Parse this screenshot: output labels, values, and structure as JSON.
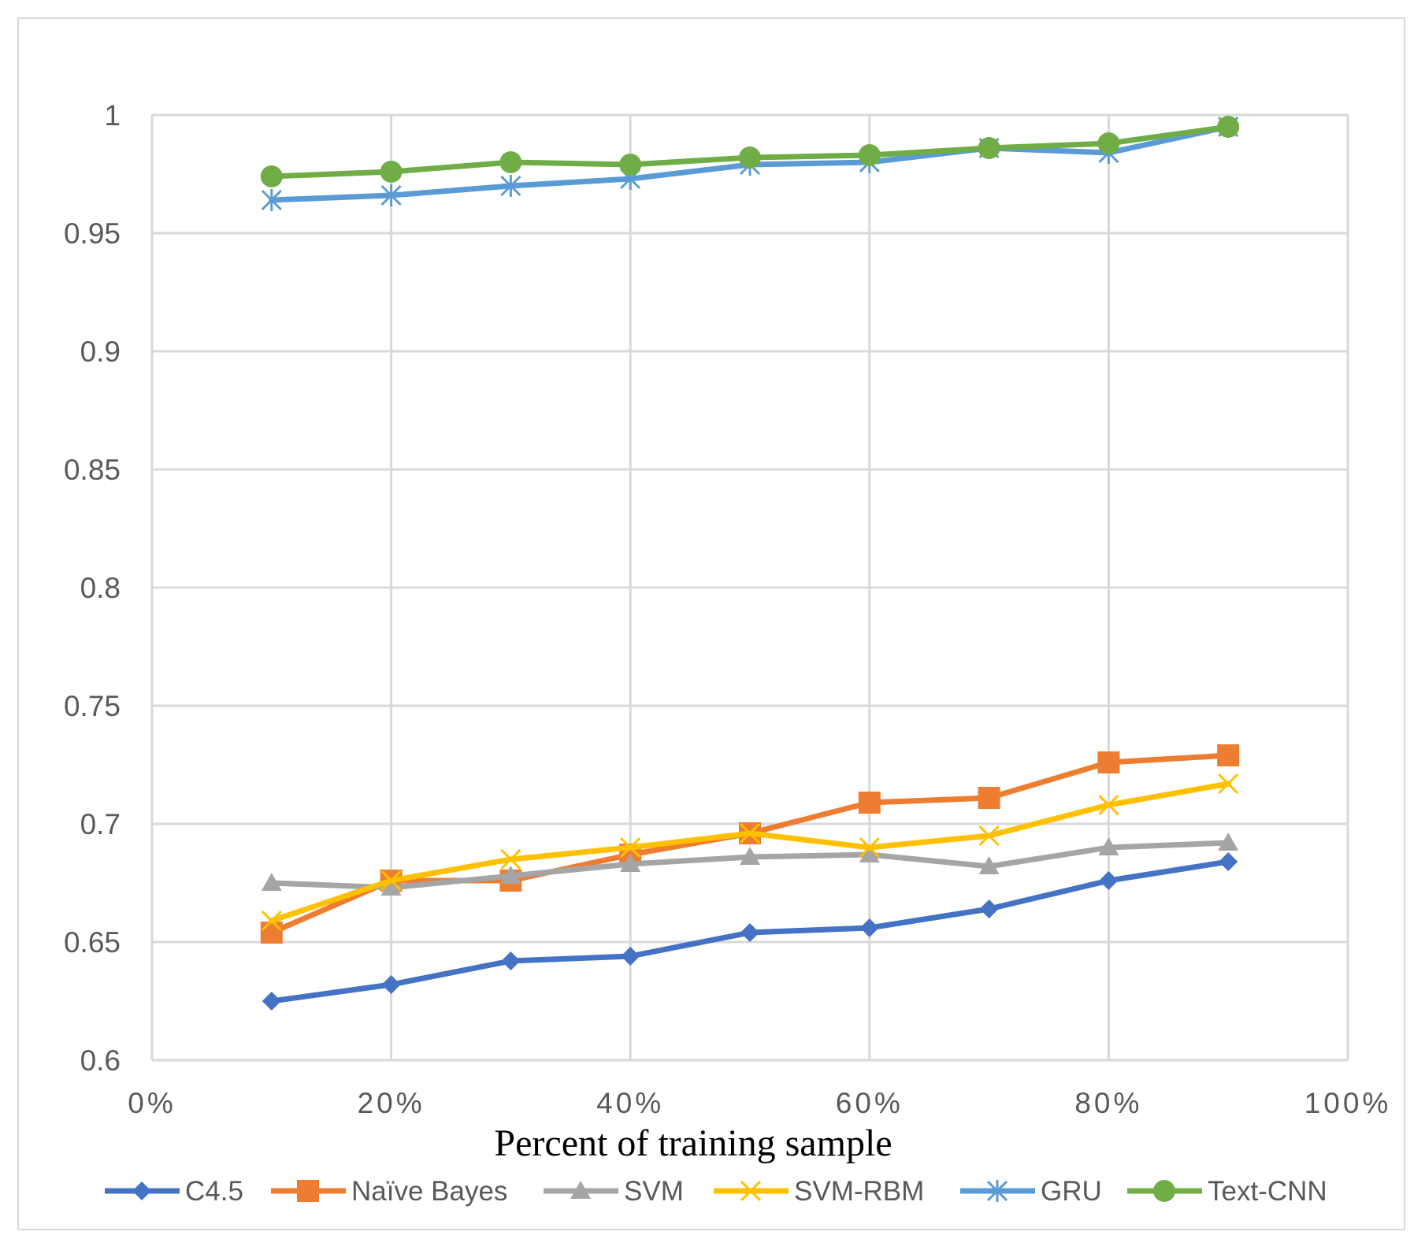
{
  "chart_data": {
    "type": "line",
    "xlabel": "Percent of training sample",
    "ylabel": "",
    "title": "",
    "x": [
      10,
      20,
      30,
      40,
      50,
      60,
      70,
      80,
      90
    ],
    "xlim": [
      0,
      100
    ],
    "ylim": [
      0.6,
      1
    ],
    "x_ticks": [
      {
        "value": 0,
        "label": "0%"
      },
      {
        "value": 20,
        "label": "20%"
      },
      {
        "value": 40,
        "label": "40%"
      },
      {
        "value": 60,
        "label": "60%"
      },
      {
        "value": 80,
        "label": "80%"
      },
      {
        "value": 100,
        "label": "100%"
      }
    ],
    "y_ticks": [
      {
        "value": 0.6,
        "label": "0.6"
      },
      {
        "value": 0.65,
        "label": "0.65"
      },
      {
        "value": 0.7,
        "label": "0.7"
      },
      {
        "value": 0.75,
        "label": "0.75"
      },
      {
        "value": 0.8,
        "label": "0.8"
      },
      {
        "value": 0.85,
        "label": "0.85"
      },
      {
        "value": 0.9,
        "label": "0.9"
      },
      {
        "value": 0.95,
        "label": "0.95"
      },
      {
        "value": 1,
        "label": "1"
      }
    ],
    "grid": true,
    "legend_position": "bottom",
    "series": [
      {
        "name": "C4.5",
        "color": "#4472C4",
        "marker": "diamond",
        "values": [
          0.625,
          0.632,
          0.642,
          0.644,
          0.654,
          0.656,
          0.664,
          0.676,
          0.684
        ]
      },
      {
        "name": "Naïve Bayes",
        "color": "#ED7D31",
        "marker": "square",
        "values": [
          0.654,
          0.676,
          0.676,
          0.687,
          0.696,
          0.709,
          0.711,
          0.726,
          0.729
        ]
      },
      {
        "name": "SVM",
        "color": "#A5A5A5",
        "marker": "triangle",
        "values": [
          0.675,
          0.673,
          0.678,
          0.683,
          0.686,
          0.687,
          0.682,
          0.69,
          0.692
        ]
      },
      {
        "name": "SVM-RBM",
        "color": "#FFC000",
        "marker": "x",
        "values": [
          0.659,
          0.676,
          0.685,
          0.69,
          0.696,
          0.69,
          0.695,
          0.708,
          0.717
        ]
      },
      {
        "name": "GRU",
        "color": "#5B9BD5",
        "marker": "asterisk",
        "values": [
          0.964,
          0.966,
          0.97,
          0.973,
          0.979,
          0.98,
          0.986,
          0.984,
          0.995
        ]
      },
      {
        "name": "Text-CNN",
        "color": "#70AD47",
        "marker": "circle",
        "values": [
          0.974,
          0.976,
          0.98,
          0.979,
          0.982,
          0.983,
          0.986,
          0.988,
          0.995
        ]
      }
    ]
  }
}
